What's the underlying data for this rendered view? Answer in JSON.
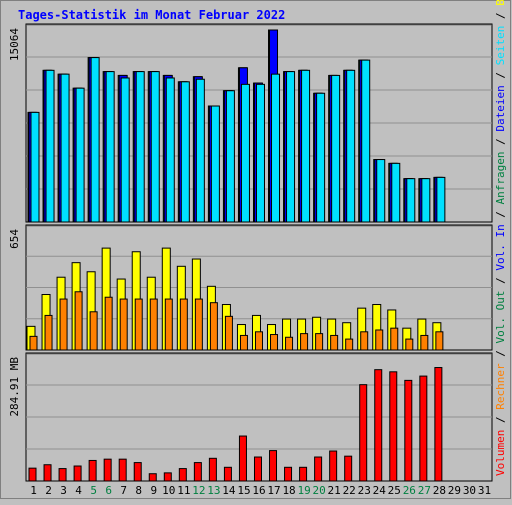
{
  "title": "Tages-Statistik im Monat Februar 2022",
  "colors": {
    "background": "#c0c0c0",
    "title": "#0000ff",
    "anfragen": "#008040",
    "dateien": "#0000ff",
    "seiten": "#00e0ff",
    "besuche": "#ffff00",
    "rechner": "#ff8000",
    "volumen": "#ff0000",
    "vol_in": "#0000ff",
    "vol_out": "#008040",
    "weekend_label": "#008040",
    "day_label": "#000000"
  },
  "right_labels": {
    "panel1": [
      {
        "text": "Anfragen",
        "color": "#008040"
      },
      {
        "text": " / ",
        "color": "#000000"
      },
      {
        "text": "Dateien",
        "color": "#0000ff"
      },
      {
        "text": " / ",
        "color": "#000000"
      },
      {
        "text": "Seiten",
        "color": "#00e0ff"
      },
      {
        "text": " / ",
        "color": "#000000"
      },
      {
        "text": "Besuche",
        "color": "#ffff00"
      }
    ],
    "panel2": [
      {
        "text": " / ",
        "color": "#000000"
      },
      {
        "text": "Rechner",
        "color": "#ff8000"
      },
      {
        "text": " / ",
        "color": "#000000"
      },
      {
        "text": "Vol. Out",
        "color": "#008040"
      },
      {
        "text": " / ",
        "color": "#000000"
      },
      {
        "text": "Vol. In",
        "color": "#0000ff"
      },
      {
        "text": " / ",
        "color": "#000000"
      }
    ],
    "panel3": [
      {
        "text": "Volumen",
        "color": "#ff0000"
      }
    ]
  },
  "chart_data": [
    {
      "type": "bar",
      "panel": "Anfragen / Dateien / Seiten",
      "ymax_label": "15064",
      "ymax": 15064,
      "x": [
        1,
        2,
        3,
        4,
        5,
        6,
        7,
        8,
        9,
        10,
        11,
        12,
        13,
        14,
        15,
        16,
        17,
        18,
        19,
        20,
        21,
        22,
        23,
        24,
        25,
        26,
        27,
        28,
        29,
        30,
        31
      ],
      "weekend_days": [
        5,
        6,
        12,
        13,
        19,
        20,
        26,
        27
      ],
      "series": [
        {
          "key": "anfragen",
          "values": [
            8600,
            11900,
            11600,
            10500,
            12900,
            11800,
            11500,
            11800,
            11800,
            11500,
            11000,
            11400,
            9100,
            10300,
            12100,
            10900,
            15064,
            11800,
            11900,
            10100,
            11500,
            11900,
            12700,
            4900,
            4600,
            3400,
            3400,
            3500,
            null,
            null,
            null
          ]
        },
        {
          "key": "dateien",
          "values": [
            8600,
            11900,
            11600,
            10500,
            12900,
            11800,
            11500,
            11800,
            11800,
            11500,
            11000,
            11400,
            9100,
            10300,
            12100,
            10900,
            15064,
            11800,
            11900,
            10100,
            11500,
            11900,
            12700,
            4900,
            4600,
            3400,
            3400,
            3500,
            null,
            null,
            null
          ]
        },
        {
          "key": "seiten",
          "values": [
            8600,
            11900,
            11600,
            10500,
            12900,
            11800,
            11300,
            11800,
            11800,
            11300,
            11000,
            11200,
            9100,
            10300,
            10800,
            10800,
            11600,
            11800,
            11900,
            10100,
            11500,
            11900,
            12700,
            4900,
            4600,
            3400,
            3400,
            3500,
            null,
            null,
            null
          ]
        }
      ]
    },
    {
      "type": "bar",
      "panel": "Besuche / Rechner",
      "ymax_label": "654",
      "ymax": 654,
      "x": [
        1,
        2,
        3,
        4,
        5,
        6,
        7,
        8,
        9,
        10,
        11,
        12,
        13,
        14,
        15,
        16,
        17,
        18,
        19,
        20,
        21,
        22,
        23,
        24,
        25,
        26,
        27,
        28,
        29,
        30,
        31
      ],
      "series": [
        {
          "key": "besuche",
          "values": [
            130,
            305,
            400,
            480,
            430,
            560,
            390,
            540,
            400,
            560,
            460,
            500,
            350,
            250,
            140,
            190,
            140,
            170,
            170,
            180,
            170,
            150,
            230,
            250,
            220,
            120,
            170,
            150,
            null,
            null,
            null
          ]
        },
        {
          "key": "rechner",
          "values": [
            75,
            190,
            280,
            320,
            210,
            290,
            280,
            280,
            280,
            280,
            280,
            280,
            260,
            185,
            80,
            100,
            85,
            70,
            90,
            90,
            80,
            60,
            100,
            110,
            120,
            60,
            80,
            100,
            null,
            null,
            null
          ]
        }
      ]
    },
    {
      "type": "bar",
      "panel": "Volumen",
      "ymax_label": "284.91 MB",
      "ymax": 284.91,
      "x": [
        1,
        2,
        3,
        4,
        5,
        6,
        7,
        8,
        9,
        10,
        11,
        12,
        13,
        14,
        15,
        16,
        17,
        18,
        19,
        20,
        21,
        22,
        23,
        24,
        25,
        26,
        27,
        28,
        29,
        30,
        31
      ],
      "series": [
        {
          "key": "volumen",
          "values": [
            30,
            38,
            29,
            35,
            48,
            51,
            51,
            43,
            17,
            19,
            29,
            43,
            53,
            32,
            105,
            56,
            71,
            32,
            32,
            56,
            70,
            58,
            225,
            260,
            255,
            235,
            245,
            265,
            null,
            null,
            null
          ]
        }
      ]
    }
  ]
}
